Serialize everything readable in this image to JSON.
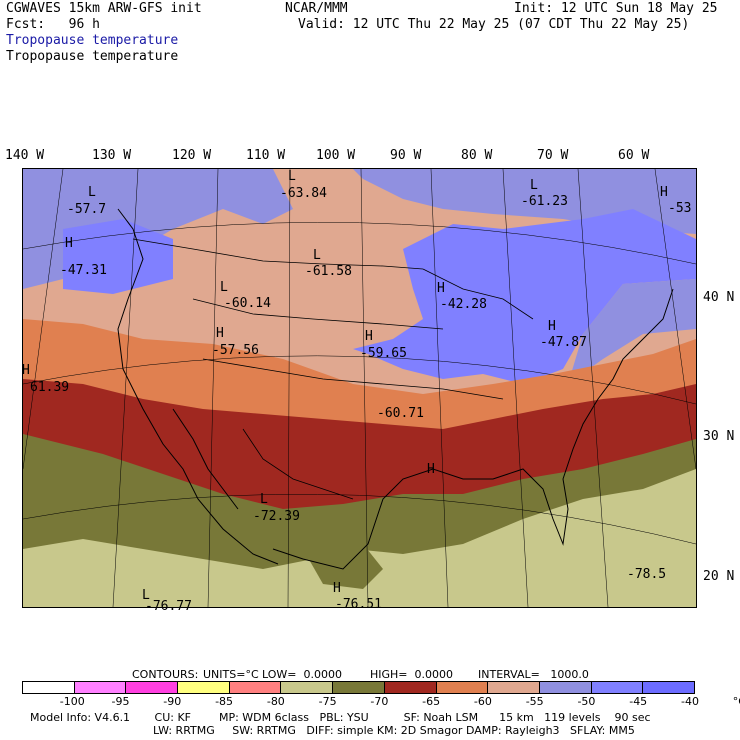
{
  "header": {
    "model": "CGWAVES 15km ARW-GFS init",
    "fcst": "Fcst:   96 h",
    "agency": "NCAR/MMM",
    "init": "Init: 12 UTC Sun 18 May 25",
    "valid": "Valid: 12 UTC Thu 22 May 25 (07 CDT Thu 22 May 25)",
    "field_title_1": "Tropopause temperature",
    "field_title_2": "Tropopause temperature"
  },
  "longitudes": [
    "140 W",
    "130 W",
    "120 W",
    "110 W",
    "100 W",
    "90 W",
    "80 W",
    "70 W",
    "60 W"
  ],
  "latitudes": [
    "40 N",
    "30 N",
    "20 N"
  ],
  "map_labels": [
    {
      "sym": "L",
      "val": "-57.7"
    },
    {
      "sym": "L",
      "val": "-63.84"
    },
    {
      "sym": "L",
      "val": "-61.23"
    },
    {
      "sym": "H",
      "val": "-53"
    },
    {
      "sym": "H",
      "val": "-47.31"
    },
    {
      "sym": "L",
      "val": "-61.58"
    },
    {
      "sym": "L",
      "val": "-60.14"
    },
    {
      "sym": "H",
      "val": "-42.28"
    },
    {
      "sym": "H",
      "val": "-57.56"
    },
    {
      "sym": "H",
      "val": "-59.65"
    },
    {
      "sym": "H",
      "val": "-47.87"
    },
    {
      "sym": "H",
      "val": "61.39"
    },
    {
      "sym": "",
      "val": "-60.71"
    },
    {
      "sym": "H",
      "val": ""
    },
    {
      "sym": "L",
      "val": "-72.39"
    },
    {
      "sym": "",
      "val": "-78.5"
    },
    {
      "sym": "L",
      "val": "-76.77"
    },
    {
      "sym": "H",
      "val": "-76.51"
    }
  ],
  "contours_info": {
    "contours": "CONTOURS:",
    "units": "UNITS=°C",
    "low": "LOW=  0.0000",
    "high": "HIGH=  0.0000",
    "interval": "INTERVAL=   1000.0"
  },
  "colorbar": {
    "colors": [
      "#ffffff",
      "#ff80ff",
      "#ff40e0",
      "#ffff80",
      "#ff8080",
      "#c8c88c",
      "#787838",
      "#a02820",
      "#e08050",
      "#e0a890",
      "#9090e0",
      "#8080ff",
      "#6c6cff"
    ],
    "labels": [
      "-100",
      "-95",
      "-90",
      "-85",
      "-80",
      "-75",
      "-70",
      "-65",
      "-60",
      "-55",
      "-50",
      "-45",
      "-40",
      "°C"
    ]
  },
  "footer": {
    "line1": "Model Info: V4.6.1       CU: KF        MP: WDM 6class   PBL: YSU          SF: Noah LSM      15 km   119 levels    90 sec",
    "line2": "LW: RRTMG     SW: RRTMG   DIFF: simple KM: 2D Smagor DAMP: Rayleigh3   SFLAY: MM5"
  }
}
